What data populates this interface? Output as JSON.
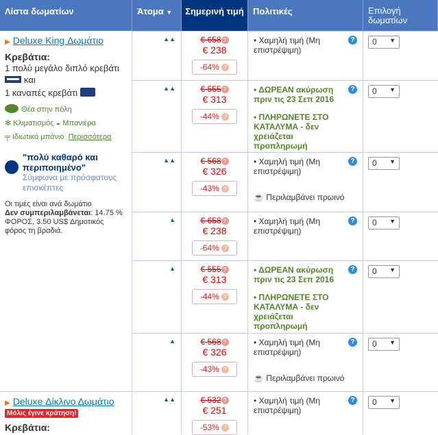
{
  "header": {
    "room_list": "Λίστα δωματίων",
    "persons": "Άτομα",
    "today_price": "Σημερινή τιμή",
    "policies": "Πολιτικές",
    "select_rooms": "Επιλογή δωματίων"
  },
  "room1": {
    "title": "Deluxe King Δωμάτιο",
    "beds_label": "Κρεβάτια:",
    "bed1": "1 πολύ μεγάλο διπλό κρεβάτι",
    "and": "και",
    "bed2": "1 καναπές κρεβάτι",
    "f1": "Θέα στην πόλη",
    "f2": "Κλιματισμός",
    "f3": "Μπανιέρα",
    "f4": "Ιδιωτικό μπάνιο",
    "more": "Περισσότερα",
    "quote": "\"πολύ καθαρό και περιποιημένο\"",
    "quote_src": "Σύμφωνα με πρόσφατους επισκέπτες",
    "per_room": "Οι τιμές είναι ανά δωμάτιο",
    "not_incl": "Δεν συμπεριλαμβάνεται",
    "tax": ": 14.75 % ΦΟΡΟΣ, 3.50 US$ Δημοτικός φόρος τη βραδιά."
  },
  "room2": {
    "title": "Deluxe Δίκλινο Δωμάτιο",
    "badge": "Μόλις έγινε κράτηση!",
    "beds_label": "Κρεβάτια:"
  },
  "policy_text": {
    "nonref": "Χαμηλή τιμή (Μη επιστρέψιμη)",
    "free": "ΔΩΡΕΑΝ ακύρωση πριν τις 23 Σεπ 2016",
    "pay": "ΠΛΗΡΩΝΕΤΕ ΣΤΟ ΚΑΤΑΛΥΜΑ - δεν χρειάζεται προπληρωμή",
    "breakfast": "Περιλαμβάνει πρωινό"
  },
  "rows": [
    {
      "persons": 2,
      "old": "€ 658",
      "new": "€ 238",
      "disc": "-64%",
      "policies": [
        "nonref"
      ],
      "qty": "0"
    },
    {
      "persons": 2,
      "old": "€ 555",
      "new": "€ 313",
      "disc": "-44%",
      "policies": [
        "free",
        "pay"
      ],
      "qty": "0"
    },
    {
      "persons": 2,
      "old": "€ 568",
      "new": "€ 326",
      "disc": "-43%",
      "policies": [
        "nonref",
        "breakfast"
      ],
      "qty": "0"
    },
    {
      "persons": 1,
      "old": "€ 658",
      "new": "€ 238",
      "disc": "-64%",
      "policies": [
        "nonref"
      ],
      "qty": "0"
    },
    {
      "persons": 1,
      "old": "€ 555",
      "new": "€ 313",
      "disc": "-44%",
      "policies": [
        "free",
        "pay"
      ],
      "qty": "0"
    },
    {
      "persons": 1,
      "old": "€ 568",
      "new": "€ 326",
      "disc": "-43%",
      "policies": [
        "nonref",
        "breakfast"
      ],
      "qty": "0"
    },
    {
      "persons": 2,
      "old": "€ 532",
      "new": "€ 251",
      "disc": "-53%",
      "policies": [
        "nonref"
      ],
      "qty": "0"
    }
  ],
  "colors": {
    "header": "#4b77be",
    "header_active": "#003580",
    "link": "#0077cc",
    "green": "#52862b",
    "price": "#e00"
  }
}
